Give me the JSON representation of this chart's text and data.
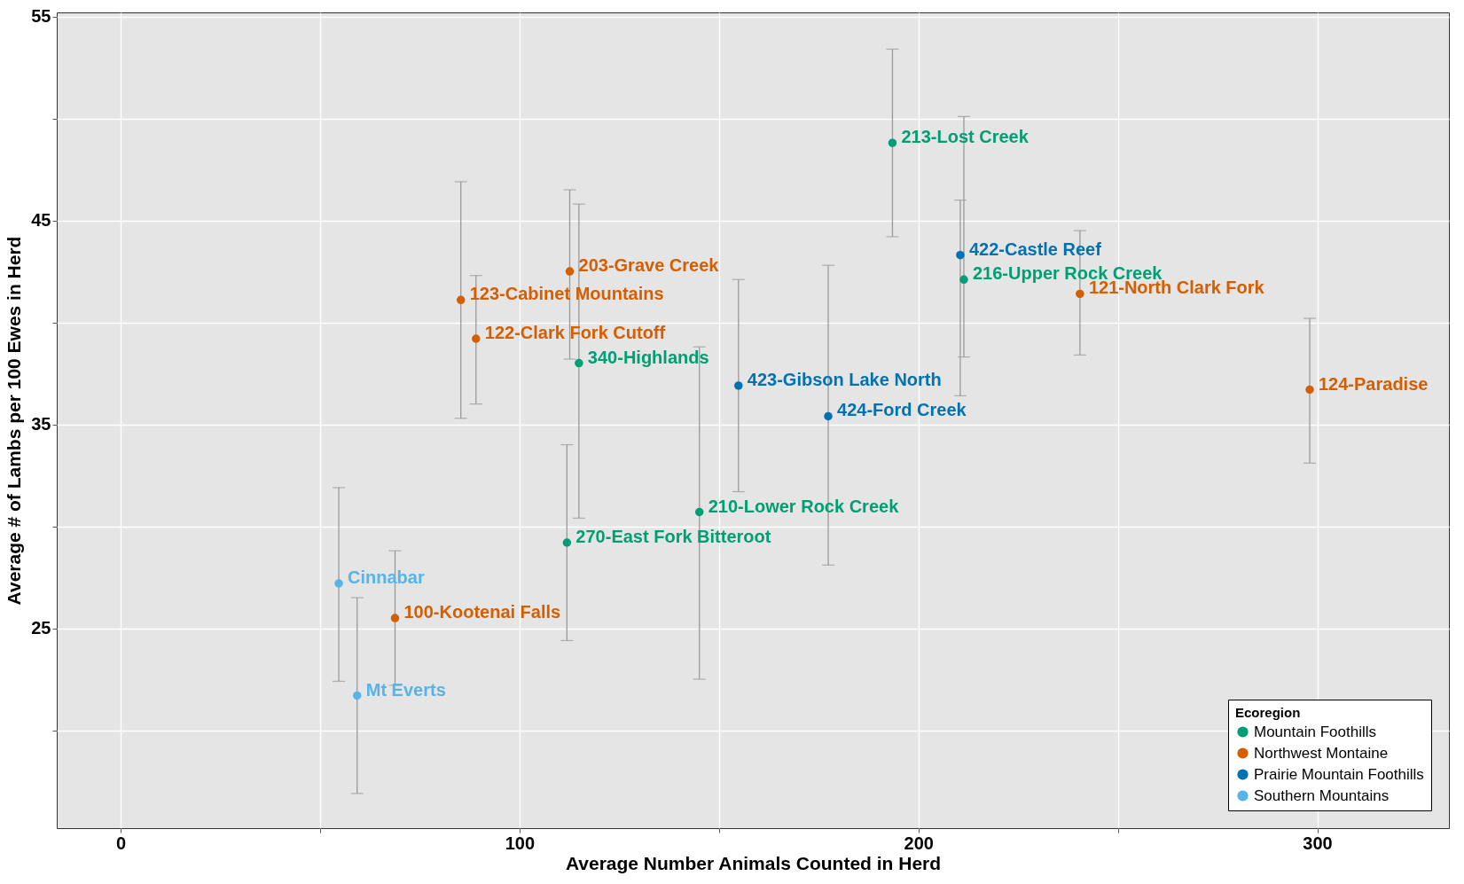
{
  "chart_data": {
    "type": "scatter",
    "xlabel": "Average Number Animals Counted in Herd",
    "ylabel": "Average # of Lambs per 100 Ewes in Herd",
    "legend_title": "Ecoregion",
    "legend": "bottom right",
    "grid": true,
    "marker": "circle",
    "xlim": [
      -16,
      333
    ],
    "ylim": [
      15.2,
      55.2
    ],
    "xticks": [
      0,
      {
        "value": 50,
        "label": null
      },
      100,
      {
        "value": 150,
        "label": null
      },
      200,
      {
        "value": 250,
        "label": null
      },
      300
    ],
    "yticks": [
      {
        "value": 20,
        "label": null
      },
      25,
      {
        "value": 30,
        "label": null
      },
      35,
      {
        "value": 40,
        "label": null
      },
      45,
      {
        "value": 50,
        "label": null
      },
      55
    ],
    "series": [
      {
        "name": "Mountain Foothills",
        "color": "#009e73",
        "x": [
          193.5,
          211.4,
          114.9,
          111.9,
          145.1
        ],
        "values": [
          48.8,
          42.1,
          38.0,
          29.2,
          30.7
        ],
        "errors": [
          [
            44.2,
            53.4
          ],
          [
            38.3,
            50.1
          ],
          [
            30.4,
            45.8
          ],
          [
            24.4,
            34.0
          ],
          [
            22.5,
            38.8
          ]
        ]
      },
      {
        "name": "Northwest Montaine",
        "color": "#d55e00",
        "x": [
          240.5,
          298.1,
          112.6,
          85.3,
          89.1,
          68.8
        ],
        "values": [
          41.4,
          36.7,
          42.5,
          41.1,
          39.2,
          25.5
        ],
        "errors": [
          [
            38.4,
            44.5
          ],
          [
            33.1,
            40.2
          ],
          [
            38.2,
            46.5
          ],
          [
            35.3,
            46.9
          ],
          [
            36.0,
            42.3
          ],
          [
            22.2,
            28.8
          ]
        ]
      },
      {
        "name": "Prairie Mountain Foothills",
        "color": "#0072b2",
        "x": [
          210.5,
          177.4,
          154.9
        ],
        "values": [
          43.3,
          35.4,
          36.9
        ],
        "errors": [
          [
            36.4,
            46.0
          ],
          [
            28.1,
            42.8
          ],
          [
            31.7,
            42.1
          ]
        ]
      },
      {
        "name": "Southern Mountains",
        "color": "#56b4e9",
        "x": [
          54.7,
          59.3
        ],
        "values": [
          27.2,
          21.7
        ],
        "errors": [
          [
            22.4,
            31.9
          ],
          [
            16.9,
            26.5
          ]
        ]
      }
    ],
    "annotations": [
      {
        "text": "213-Lost Creek",
        "x": 193.5,
        "y": 48.8
      },
      {
        "text": "216-Upper Rock Creek",
        "x": 211.4,
        "y": 42.1
      },
      {
        "text": "340-Highlands",
        "x": 114.9,
        "y": 38.0
      },
      {
        "text": "270-East Fork Bitteroot",
        "x": 111.9,
        "y": 29.2
      },
      {
        "text": "210-Lower Rock Creek",
        "x": 145.1,
        "y": 30.7
      },
      {
        "text": "121-North Clark Fork",
        "x": 240.5,
        "y": 41.4
      },
      {
        "text": "124-Paradise",
        "x": 298.1,
        "y": 36.7
      },
      {
        "text": "203-Grave Creek",
        "x": 112.6,
        "y": 42.5
      },
      {
        "text": "123-Cabinet Mountains",
        "x": 85.3,
        "y": 41.1
      },
      {
        "text": "122-Clark Fork Cutoff",
        "x": 89.1,
        "y": 39.2
      },
      {
        "text": "100-Kootenai Falls",
        "x": 68.8,
        "y": 25.5
      },
      {
        "text": "422-Castle Reef",
        "x": 210.5,
        "y": 43.3
      },
      {
        "text": "424-Ford Creek",
        "x": 177.4,
        "y": 35.4
      },
      {
        "text": "423-Gibson Lake North",
        "x": 154.9,
        "y": 36.9
      },
      {
        "text": "Cinnabar",
        "x": 54.7,
        "y": 27.2
      },
      {
        "text": "Mt Everts",
        "x": 59.3,
        "y": 21.7
      }
    ]
  }
}
